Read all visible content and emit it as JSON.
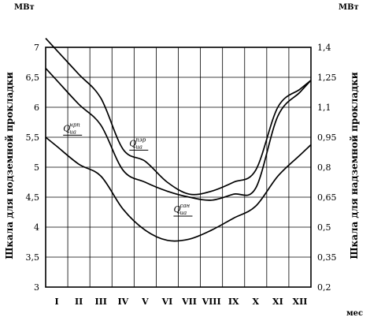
{
  "chart_data": {
    "type": "line",
    "xlabel": "мес",
    "categories": [
      "I",
      "II",
      "III",
      "IV",
      "V",
      "VI",
      "VII",
      "VIII",
      "IX",
      "X",
      "XI",
      "XII"
    ],
    "left_axis": {
      "unit": "МВт",
      "label": "Шкала для подземной прокладки",
      "ylim": [
        3,
        7
      ],
      "ticks": [
        "3",
        "3,5",
        "4",
        "4,5",
        "5",
        "5,5",
        "6",
        "6,5",
        "7"
      ]
    },
    "right_axis": {
      "unit": "МВт",
      "label": "Шкала для надземной прокладки",
      "ylim": [
        0.2,
        1.4
      ],
      "ticks": [
        "0,2",
        "0,35",
        "0,5",
        "0,65",
        "0,8",
        "0,95",
        "1,1",
        "1,25",
        "1,4"
      ]
    },
    "grid": true,
    "series": [
      {
        "name": "Q_ua^нрп",
        "label_main": "Q",
        "label_sub": "ua",
        "label_sup": "нрп",
        "values": [
          6.95,
          6.55,
          6.15,
          5.3,
          5.1,
          4.75,
          4.55,
          4.6,
          4.75,
          4.95,
          6.0,
          6.3
        ]
      },
      {
        "name": "Q_ua^пэр",
        "label_main": "Q",
        "label_sub": "ua",
        "label_sup": "пэр",
        "values": [
          6.45,
          6.05,
          5.7,
          4.95,
          4.75,
          4.6,
          4.5,
          4.45,
          4.55,
          4.65,
          5.85,
          6.25
        ]
      },
      {
        "name": "Q_ua^сан",
        "label_main": "Q",
        "label_sub": "ua",
        "label_sup": "сан",
        "values": [
          5.35,
          5.05,
          4.85,
          4.3,
          3.95,
          3.78,
          3.8,
          3.95,
          4.15,
          4.35,
          4.85,
          5.2
        ]
      }
    ]
  }
}
